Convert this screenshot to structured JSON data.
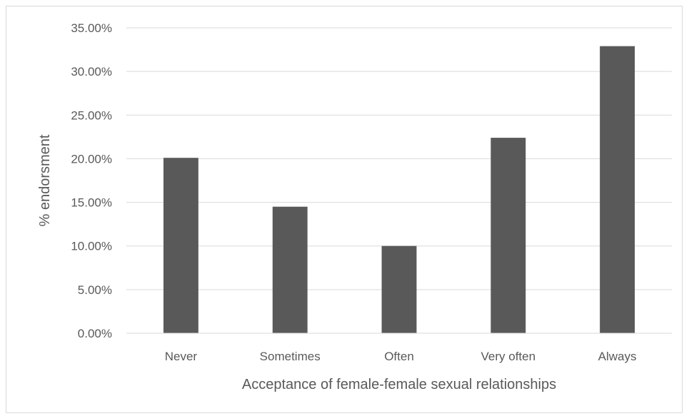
{
  "chart_data": {
    "type": "bar",
    "categories": [
      "Never",
      "Sometimes",
      "Often",
      "Very often",
      "Always"
    ],
    "series": [
      {
        "values": [
          20.1,
          14.5,
          10.0,
          22.4,
          32.9
        ]
      }
    ],
    "title": "",
    "xlabel": "Acceptance of female-female sexual relationships",
    "ylabel": "% endorsment",
    "ylim": [
      0,
      35
    ],
    "yticks": [
      "0.00%",
      "5.00%",
      "10.00%",
      "15.00%",
      "20.00%",
      "25.00%",
      "30.00%",
      "35.00%"
    ],
    "grid": true,
    "legend": "none",
    "colors": {
      "bar": "#595959",
      "grid": "#d9d9d9",
      "text": "#595959"
    }
  }
}
